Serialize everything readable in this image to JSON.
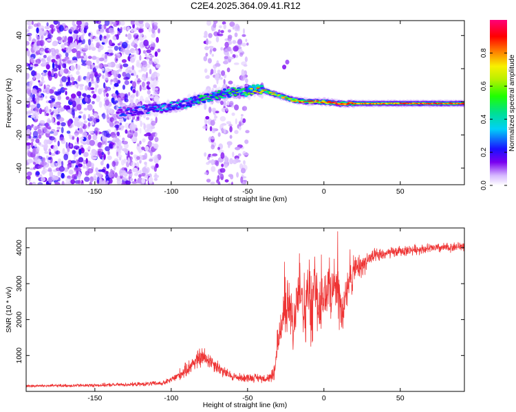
{
  "title": "C2E4.2025.364.09.41.R12",
  "chart_data": [
    {
      "type": "heatmap",
      "xlabel": "Height of straight line (km)",
      "ylabel": "Frequency (Hz)",
      "xlim": [
        -195,
        92
      ],
      "ylim": [
        -50,
        49
      ],
      "xticks": [
        -150,
        -100,
        -50,
        0,
        50
      ],
      "yticks": [
        -40,
        -20,
        0,
        20,
        40
      ],
      "colorbar": {
        "label": "Normalized spectral amplitude",
        "range": [
          0,
          1
        ],
        "ticks": [
          0.0,
          0.2,
          0.4,
          0.6,
          0.8
        ]
      },
      "ridge": {
        "x": [
          -135,
          -120,
          -110,
          -100,
          -90,
          -80,
          -70,
          -60,
          -50,
          -45,
          -40,
          -30,
          -20,
          -10,
          0,
          10,
          20,
          30,
          40,
          50,
          60,
          70,
          80,
          92
        ],
        "freq": [
          -6,
          -5,
          -4,
          -3,
          -1,
          2,
          4,
          6,
          6,
          8,
          7,
          4,
          1,
          0,
          0,
          -1,
          -1,
          -1,
          -1,
          -1,
          -1,
          -1,
          -1,
          -1
        ],
        "amplitude": [
          0.25,
          0.3,
          0.35,
          0.35,
          0.4,
          0.45,
          0.45,
          0.5,
          0.6,
          0.75,
          0.8,
          0.7,
          0.8,
          0.85,
          0.9,
          0.9,
          0.85,
          0.85,
          0.85,
          0.85,
          0.85,
          0.9,
          0.9,
          0.85
        ]
      },
      "noise_regions": [
        [
          -195,
          -108
        ],
        [
          -78,
          -50
        ]
      ]
    },
    {
      "type": "line",
      "xlabel": "Height of straight line (km)",
      "ylabel": "SNR (10 * v/v)",
      "xlim": [
        -195,
        92
      ],
      "ylim": [
        0,
        4550
      ],
      "xticks": [
        -150,
        -100,
        -50,
        0,
        50
      ],
      "yticks": [
        1000,
        2000,
        3000,
        4000
      ],
      "series": [
        {
          "name": "SNR",
          "color": "#ee3333",
          "x": [
            -195,
            -150,
            -120,
            -105,
            -100,
            -95,
            -90,
            -85,
            -80,
            -75,
            -70,
            -65,
            -60,
            -55,
            -50,
            -45,
            -40,
            -35,
            -32,
            -30,
            -28,
            -25,
            -22,
            -20,
            -18,
            -15,
            -12,
            -10,
            -8,
            -6,
            -4,
            -2,
            0,
            2,
            5,
            8,
            10,
            12,
            14,
            16,
            18,
            20,
            25,
            30,
            40,
            50,
            60,
            70,
            80,
            92
          ],
          "values": [
            150,
            170,
            200,
            230,
            320,
            450,
            600,
            820,
            950,
            880,
            700,
            520,
            420,
            380,
            380,
            380,
            370,
            380,
            600,
            1400,
            1900,
            2300,
            2400,
            1500,
            2800,
            3000,
            2000,
            3000,
            2000,
            3000,
            2500,
            2200,
            2700,
            2700,
            2900,
            3000,
            2600,
            2000,
            2700,
            2900,
            3100,
            3400,
            3500,
            3700,
            3830,
            3900,
            3950,
            3980,
            4000,
            4050
          ],
          "spread": [
            50,
            60,
            70,
            90,
            110,
            200,
            250,
            300,
            380,
            300,
            250,
            200,
            150,
            150,
            150,
            150,
            150,
            150,
            400,
            700,
            800,
            900,
            1000,
            900,
            1100,
            1200,
            1300,
            1300,
            1200,
            1500,
            1200,
            1200,
            1100,
            1100,
            900,
            900,
            1000,
            900,
            800,
            700,
            600,
            500,
            400,
            300,
            200,
            180,
            170,
            170,
            170,
            170
          ]
        }
      ]
    }
  ]
}
